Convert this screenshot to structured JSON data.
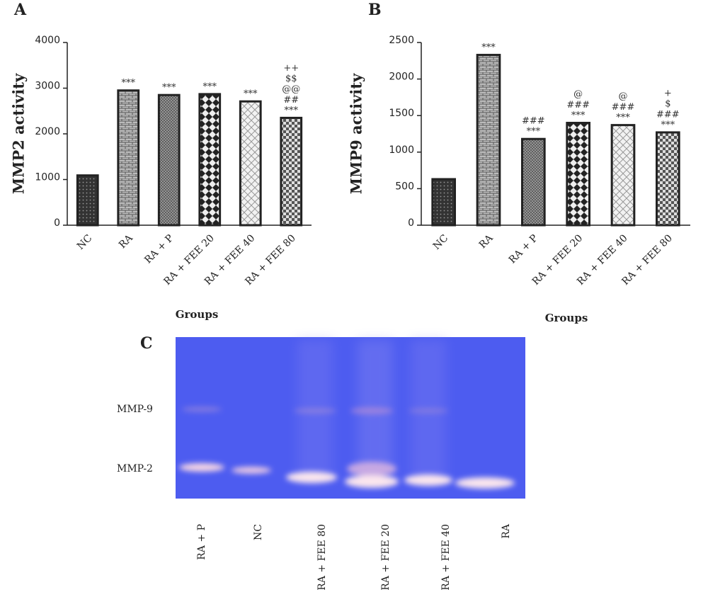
{
  "chart_data": [
    {
      "type": "bar",
      "panel_label": "A",
      "y_label": "MMP2 activity",
      "x_label": "Groups",
      "categories": [
        "NC",
        "RA",
        "RA + P",
        "RA + FEE 20",
        "RA + FEE 40",
        "RA + FEE 80"
      ],
      "values": [
        1090,
        2950,
        2850,
        2870,
        2710,
        2350
      ],
      "annotations": [
        [],
        [
          "***"
        ],
        [
          "***"
        ],
        [
          "***"
        ],
        [
          "***"
        ],
        [
          "++",
          "$$",
          "@@",
          "##",
          "***"
        ]
      ],
      "color": "#222222",
      "ylim": [
        0,
        4000
      ],
      "yticks": [
        0,
        1000,
        2000,
        3000,
        4000
      ]
    },
    {
      "type": "bar",
      "panel_label": "B",
      "y_label": "MMP9 activity",
      "x_label": "Groups",
      "categories": [
        "NC",
        "RA",
        "RA + P",
        "RA + FEE 20",
        "RA + FEE 40",
        "RA + FEE 80"
      ],
      "values": [
        630,
        2330,
        1180,
        1400,
        1370,
        1270
      ],
      "annotations": [
        [],
        [
          "***"
        ],
        [
          "###",
          "***"
        ],
        [
          "@",
          "###",
          "***"
        ],
        [
          "@",
          "###",
          "***"
        ],
        [
          "+",
          "$",
          "###",
          "***"
        ]
      ],
      "color": "#222222",
      "ylim": [
        0,
        2500
      ],
      "yticks": [
        0,
        500,
        1000,
        1500,
        2000,
        2500
      ]
    }
  ],
  "gel": {
    "label": "C",
    "band_labels": [
      "MMP-9",
      "MMP-2"
    ],
    "lanes": [
      "RA + P",
      "NC",
      "RA + FEE 80",
      "RA + FEE 20",
      "RA + FEE 40",
      "RA"
    ]
  }
}
